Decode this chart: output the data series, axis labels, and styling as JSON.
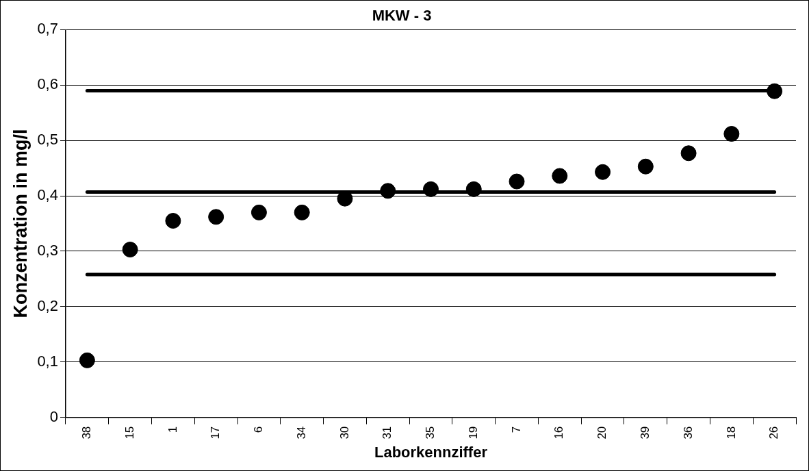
{
  "chart_data": {
    "type": "scatter",
    "title": "MKW - 3",
    "xlabel": "Laborkennziffer",
    "ylabel": "Konzentration in mg/l",
    "categories": [
      "38",
      "15",
      "1",
      "17",
      "6",
      "34",
      "30",
      "31",
      "35",
      "19",
      "7",
      "16",
      "20",
      "39",
      "36",
      "18",
      "26"
    ],
    "series": [
      {
        "color": "#000000",
        "values": [
          0.103,
          0.303,
          0.355,
          0.362,
          0.37,
          0.37,
          0.395,
          0.409,
          0.412,
          0.412,
          0.426,
          0.436,
          0.443,
          0.453,
          0.477,
          0.512,
          0.589
        ]
      }
    ],
    "ylim": [
      0,
      0.7
    ],
    "yticks": [
      0,
      {
        "value": 0.1,
        "label": "0,1"
      },
      {
        "value": 0.2,
        "label": "0,2"
      },
      {
        "value": 0.3,
        "label": "0,3"
      },
      {
        "value": 0.4,
        "label": "0,4"
      },
      {
        "value": 0.5,
        "label": "0,5"
      },
      {
        "value": 0.6,
        "label": "0,6"
      },
      {
        "value": 0.7,
        "label": "0,7"
      }
    ],
    "ref_lines": [
      {
        "axis": "y",
        "value": 0.59,
        "color": "#000000"
      },
      {
        "axis": "y",
        "value": 0.407,
        "color": "#000000"
      },
      {
        "axis": "y",
        "value": 0.258,
        "color": "#000000"
      }
    ],
    "grid": "y",
    "marker": "circle",
    "legend": false
  }
}
